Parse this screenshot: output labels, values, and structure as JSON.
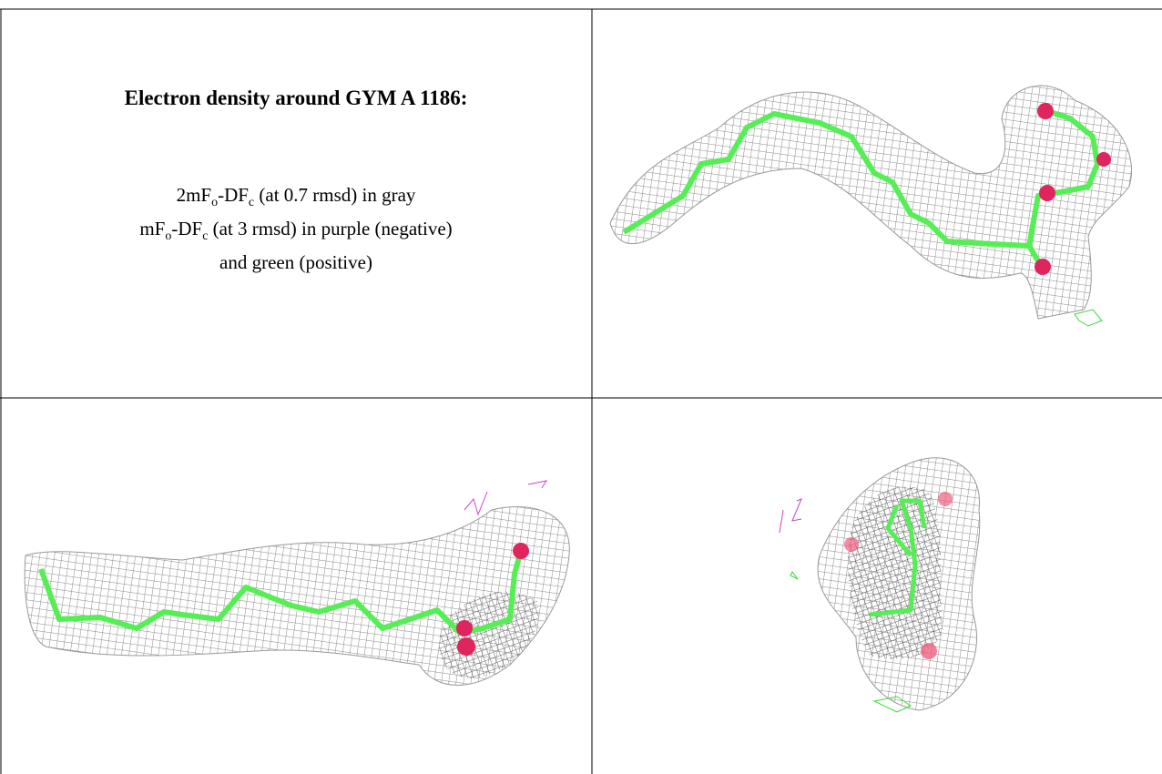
{
  "document": {
    "title": "Electron density around GYM A 1186:",
    "legend_lines": [
      [
        "2mF",
        "o",
        "-DF",
        "c",
        " (at 0.7 rmsd) in gray"
      ],
      [
        "mF",
        "o",
        "-DF",
        "c",
        " (at 3 rmsd) in purple (negative)"
      ],
      [
        "and green (positive)"
      ]
    ]
  }
}
